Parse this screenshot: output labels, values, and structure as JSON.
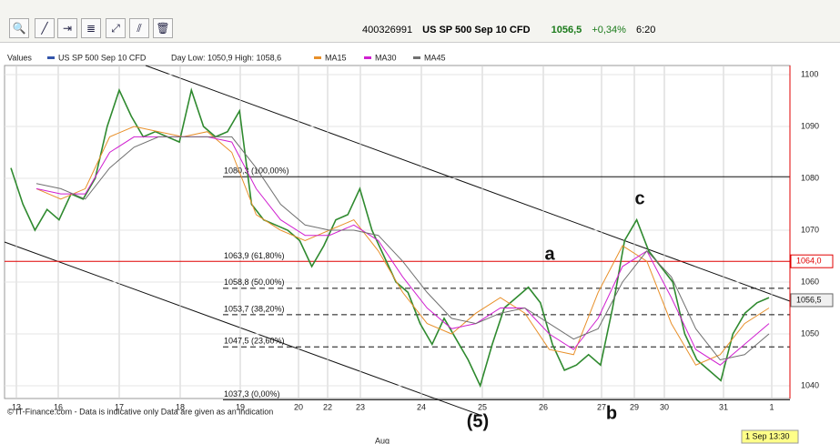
{
  "header": {
    "code": "400326991",
    "instrument": "US SP 500 Sep 10 CFD",
    "price": "1056,5",
    "change": "+0,34%",
    "time": "6:20"
  },
  "chart_data": {
    "type": "line",
    "legend": {
      "title": "Values",
      "instrument": "US SP 500 Sep 10 CFD",
      "day_range": "Day Low: 1050,9 High: 1058,6"
    },
    "series": [
      {
        "name": "US SP 500 Sep 10 CFD",
        "color": "#2f8a2f",
        "legend_color": "#3355aa",
        "values": [
          1082,
          1075,
          1070,
          1074,
          1072,
          1077,
          1076,
          1080,
          1090,
          1097,
          1092,
          1088,
          1089,
          1088,
          1087,
          1097,
          1090,
          1088,
          1089,
          1093,
          1075,
          1072,
          1071,
          1070,
          1068,
          1063,
          1067,
          1072,
          1073,
          1078,
          1070,
          1065,
          1060,
          1058,
          1052,
          1048,
          1053,
          1049,
          1045,
          1040,
          1048,
          1055,
          1057,
          1059,
          1056,
          1048,
          1043,
          1044,
          1046,
          1044,
          1055,
          1068,
          1072,
          1066,
          1063,
          1060,
          1050,
          1045,
          1043,
          1041,
          1050,
          1054,
          1056,
          1057
        ]
      },
      {
        "name": "MA15",
        "color": "#e8902a",
        "values": [
          1078,
          1076,
          1078,
          1088,
          1090,
          1089,
          1088,
          1089,
          1085,
          1073,
          1070,
          1068,
          1070,
          1072,
          1066,
          1058,
          1052,
          1050,
          1054,
          1057,
          1054,
          1047,
          1046,
          1058,
          1067,
          1064,
          1052,
          1044,
          1046,
          1052,
          1055
        ]
      },
      {
        "name": "MA30",
        "color": "#d020d0",
        "values": [
          1078,
          1077,
          1077,
          1085,
          1088,
          1088,
          1088,
          1088,
          1087,
          1078,
          1072,
          1069,
          1069,
          1071,
          1068,
          1061,
          1055,
          1051,
          1052,
          1055,
          1055,
          1050,
          1047,
          1053,
          1063,
          1066,
          1057,
          1047,
          1044,
          1048,
          1052
        ]
      },
      {
        "name": "MA45",
        "color": "#707070",
        "values": [
          1079,
          1078,
          1076,
          1082,
          1086,
          1088,
          1088,
          1088,
          1088,
          1082,
          1075,
          1071,
          1070,
          1070,
          1069,
          1064,
          1058,
          1053,
          1052,
          1054,
          1055,
          1052,
          1049,
          1051,
          1060,
          1066,
          1061,
          1051,
          1045,
          1046,
          1050
        ]
      }
    ],
    "ylim": [
      1040,
      1100
    ],
    "yticks": [
      1040,
      1050,
      1060,
      1070,
      1080,
      1090,
      1100
    ],
    "xtick_labels": [
      "13",
      "16",
      "17",
      "18",
      "19",
      "20",
      "22",
      "23",
      "24",
      "25",
      "26",
      "27",
      "29",
      "30",
      "31",
      "1"
    ],
    "x_month": "Aug",
    "x_last": "1 Sep 13:30",
    "fib_levels": [
      {
        "value": 1080.3,
        "label": "1080,3 (100,00%)",
        "style": "solid"
      },
      {
        "value": 1063.9,
        "label": "1063,9 (61,80%)",
        "style": "none"
      },
      {
        "value": 1058.8,
        "label": "1058,8 (50,00%)",
        "style": "dashed"
      },
      {
        "value": 1053.7,
        "label": "1053,7 (38,20%)",
        "style": "dashed"
      },
      {
        "value": 1047.5,
        "label": "1047,5 (23,60%)",
        "style": "dashed"
      },
      {
        "value": 1037.3,
        "label": "1037,3 (0,00%)",
        "style": "solid"
      }
    ],
    "hline": {
      "value": 1064,
      "label": "1064,0",
      "color": "#e00000"
    },
    "last_price": {
      "value": 1056.5,
      "label": "1056,5"
    },
    "annotations": [
      "a",
      "b",
      "c",
      "(5)"
    ],
    "footer": "© IT-Finance.com - Data is indicative only Data are given as an indication"
  }
}
